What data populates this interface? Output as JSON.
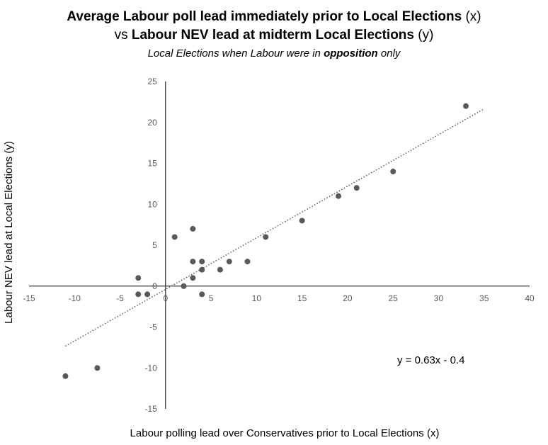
{
  "header": {
    "line1_bold": "Average Labour poll lead immediately prior to Local Elections",
    "line1_plain": " (x)",
    "line2_plain_before": "vs ",
    "line2_bold": "Labour NEV lead at midterm Local Elections",
    "line2_plain_after": "  (y)",
    "line3_before": "Local Elections when Labour were in ",
    "line3_bold": "opposition",
    "line3_after": " only"
  },
  "chart_data": {
    "type": "scatter",
    "xlabel": "Labour polling lead over Conservatives prior to Local Elections (x)",
    "ylabel": "Labour NEV lead at Local Elections (y)",
    "xlim": [
      -15,
      40
    ],
    "ylim": [
      -15,
      25
    ],
    "xticks": [
      -15,
      -10,
      -5,
      0,
      5,
      10,
      15,
      20,
      25,
      30,
      35,
      40
    ],
    "yticks": [
      -15,
      -10,
      -5,
      0,
      5,
      10,
      15,
      20,
      25
    ],
    "points": [
      {
        "x": -11,
        "y": -11
      },
      {
        "x": -7.5,
        "y": -10
      },
      {
        "x": -3,
        "y": 1
      },
      {
        "x": -3,
        "y": -1
      },
      {
        "x": -2,
        "y": -1
      },
      {
        "x": 1,
        "y": 6
      },
      {
        "x": 2,
        "y": 0
      },
      {
        "x": 3,
        "y": 7
      },
      {
        "x": 3,
        "y": 3
      },
      {
        "x": 3,
        "y": 1
      },
      {
        "x": 4,
        "y": 3
      },
      {
        "x": 4,
        "y": 2
      },
      {
        "x": 4,
        "y": -1
      },
      {
        "x": 6,
        "y": 2
      },
      {
        "x": 7,
        "y": 3
      },
      {
        "x": 9,
        "y": 3
      },
      {
        "x": 11,
        "y": 6
      },
      {
        "x": 15,
        "y": 8
      },
      {
        "x": 19,
        "y": 11
      },
      {
        "x": 21,
        "y": 12
      },
      {
        "x": 25,
        "y": 14
      },
      {
        "x": 33,
        "y": 22
      }
    ],
    "trendline": {
      "type": "linear",
      "slope": 0.63,
      "intercept": -0.4,
      "x_range": [
        -11,
        35
      ],
      "style": "dotted"
    },
    "equation_label": "y = 0.63x - 0.4",
    "marker_color": "#595959",
    "trendline_color": "#595959",
    "grid": false,
    "legend": "none"
  }
}
